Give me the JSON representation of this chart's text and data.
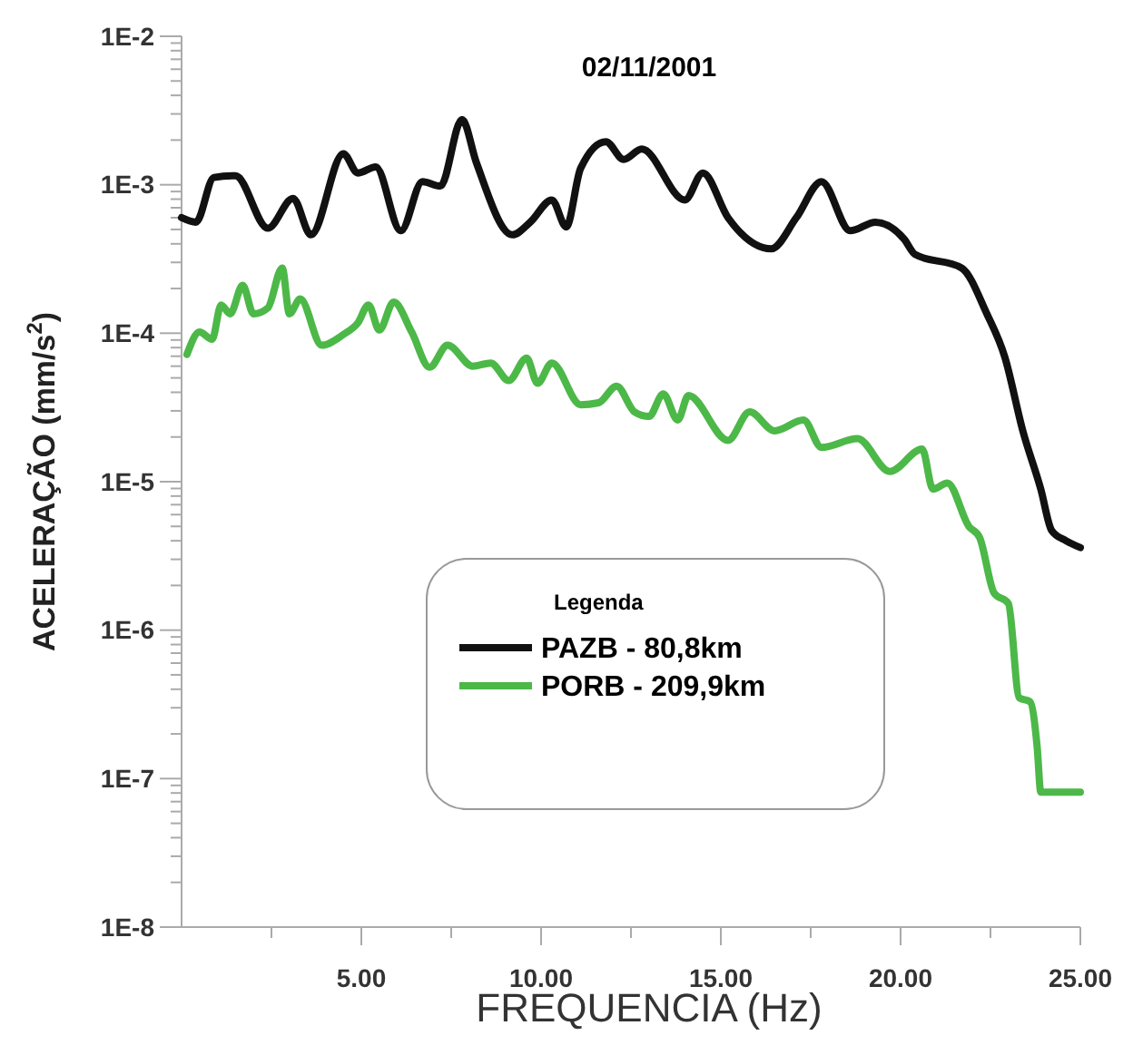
{
  "chart_data": {
    "type": "line",
    "title": "02/11/2001",
    "xlabel": "FREQUENCIA (Hz)",
    "ylabel": "ACELERAÇÃO (mm/s$^{2}$)",
    "legend_title": "Legenda",
    "legend": "bottom",
    "log": "y",
    "grid": false,
    "marker": "none",
    "line_style": "solid",
    "xlim": [
      0,
      25
    ],
    "xticks": [
      {
        "value": 2.5,
        "label": null
      },
      {
        "value": 5,
        "label": "5.00"
      },
      {
        "value": 7.5,
        "label": null
      },
      {
        "value": 10,
        "label": "10.00"
      },
      {
        "value": 12.5,
        "label": null
      },
      {
        "value": 15,
        "label": "15.00"
      },
      {
        "value": 17.5,
        "label": null
      },
      {
        "value": 20,
        "label": "20.00"
      },
      {
        "value": 22.5,
        "label": null
      },
      {
        "value": 25,
        "label": "25.00"
      }
    ],
    "ylim": [
      1e-08,
      0.01
    ],
    "yticks": [
      {
        "value": 1e-08,
        "label": "1E-8"
      },
      {
        "value": 1e-07,
        "label": "1E-7"
      },
      {
        "value": 1e-06,
        "label": "1E-6"
      },
      {
        "value": 1e-05,
        "label": "1E-5"
      },
      {
        "value": 0.0001,
        "label": "1E-4"
      },
      {
        "value": 0.001,
        "label": "1E-3"
      },
      {
        "value": 0.01,
        "label": "1E-2"
      }
    ],
    "series": [
      {
        "name": "PAZB - 80,8km",
        "color": "#111111",
        "x": [
          0,
          0.4,
          0.9,
          1.5,
          2.4,
          3.1,
          3.6,
          4.5,
          4.9,
          5.4,
          6.1,
          6.7,
          7.2,
          7.8,
          8.2,
          9.2,
          9.7,
          10.3,
          10.7,
          11.1,
          11.8,
          12.3,
          12.8,
          14.0,
          14.5,
          15.2,
          16.4,
          17.1,
          17.8,
          18.6,
          19.3,
          20.1,
          20.4,
          21.7,
          22.4,
          22.9,
          23.4,
          23.9,
          24.2,
          24.6,
          25.0
        ],
        "values": [
          0.0006,
          0.00056,
          0.00112,
          0.00115,
          0.00051,
          0.00081,
          0.00046,
          0.00162,
          0.0012,
          0.00132,
          0.00049,
          0.00105,
          0.00098,
          0.00275,
          0.00141,
          0.00046,
          0.00056,
          0.00079,
          0.00052,
          0.00129,
          0.00195,
          0.00148,
          0.00174,
          0.00079,
          0.0012,
          0.0006,
          0.00037,
          0.0006,
          0.00105,
          0.00049,
          0.00056,
          0.00043,
          0.00034,
          0.000275,
          0.000135,
          6.9e-05,
          2.2e-05,
          8.9e-06,
          4.7e-06,
          4e-06,
          3.6e-06
        ]
      },
      {
        "name": "PORB - 209,9km",
        "color": "#4cb848",
        "x": [
          0.15,
          0.5,
          0.85,
          1.1,
          1.35,
          1.7,
          2.0,
          2.4,
          2.8,
          3.0,
          3.3,
          3.9,
          4.5,
          4.9,
          5.2,
          5.5,
          5.9,
          6.4,
          6.9,
          7.4,
          8.1,
          8.6,
          9.1,
          9.6,
          9.9,
          10.3,
          11.1,
          11.6,
          12.1,
          12.6,
          13.0,
          13.4,
          13.8,
          14.1,
          15.2,
          15.8,
          16.5,
          17.3,
          17.8,
          18.8,
          19.7,
          20.6,
          20.9,
          21.3,
          21.9,
          22.2,
          22.6,
          23.0,
          23.3,
          23.6,
          23.8,
          23.9,
          25.0
        ],
        "values": [
          7.2e-05,
          0.000102,
          9.1e-05,
          0.000155,
          0.000135,
          0.00021,
          0.000135,
          0.000148,
          0.000275,
          0.000135,
          0.00017,
          8.3e-05,
          9.8e-05,
          0.000117,
          0.000155,
          0.000105,
          0.000162,
          0.000102,
          5.9e-05,
          8.3e-05,
          6e-05,
          6.3e-05,
          4.8e-05,
          6.8e-05,
          4.6e-05,
          6.3e-05,
          3.3e-05,
          3.4e-05,
          4.4e-05,
          2.95e-05,
          2.75e-05,
          3.9e-05,
          2.6e-05,
          3.8e-05,
          1.9e-05,
          2.95e-05,
          2.2e-05,
          2.6e-05,
          1.7e-05,
          1.95e-05,
          1.17e-05,
          1.66e-05,
          8.9e-06,
          9.8e-06,
          5e-06,
          4.2e-06,
          1.78e-06,
          1.51e-06,
          3.5e-07,
          3.3e-07,
          1.62e-07,
          8.1e-08,
          8.1e-08
        ]
      }
    ]
  }
}
